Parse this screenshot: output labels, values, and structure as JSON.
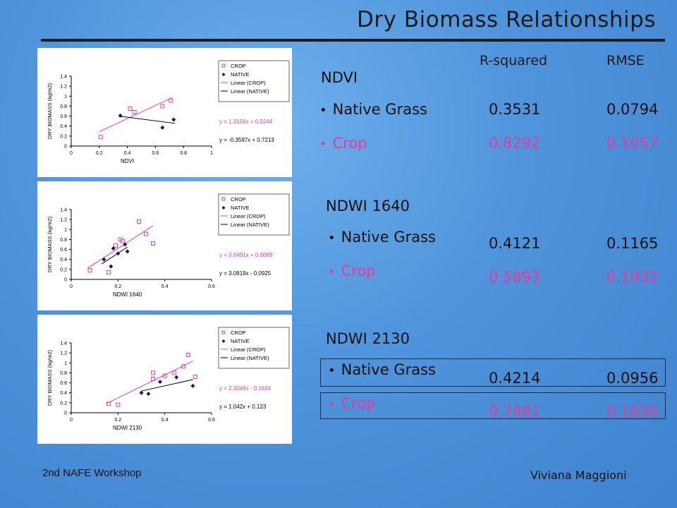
{
  "slide": {
    "title": "Dry Biomass Relationships",
    "footer_left": "2nd NAFE Workshop",
    "footer_right": "Viviana Maggioni"
  },
  "table": {
    "col_r2": "R-squared",
    "col_rmse": "RMSE",
    "native_label": "Native Grass",
    "crop_label": "Crop",
    "sections": [
      {
        "name": "NDVI",
        "native_r2": "0.3531",
        "native_rmse": "0.0794",
        "crop_r2": "0.8292",
        "crop_rmse": "0.1057"
      },
      {
        "name": "NDWI 1640",
        "native_r2": "0.4121",
        "native_rmse": "0.1165",
        "crop_r2": "0.5893",
        "crop_rmse": "0.1932"
      },
      {
        "name": "NDWI 2130",
        "native_r2": "0.4214",
        "native_rmse": "0.0956",
        "crop_r2": "0.7881",
        "crop_rmse": "0.1656"
      }
    ]
  },
  "colors": {
    "crop": "#e63c9c",
    "native": "#111111",
    "crop_marker": "#e83ca0",
    "native_marker": "#141470"
  },
  "chart_data": [
    {
      "type": "scatter",
      "xlabel": "NDVI",
      "ylabel": "DRY BIOMASS (kg/m2)",
      "xlim": [
        0,
        1
      ],
      "ylim": [
        0,
        1.4
      ],
      "xticks": [
        "0",
        "0.2",
        "0.4",
        "0.6",
        "0.8",
        "1"
      ],
      "yticks": [
        "0",
        "0.2",
        "0.4",
        "0.6",
        "0.8",
        "1",
        "1.2",
        "1.4"
      ],
      "legend": [
        "CROP",
        "NATIVE",
        "Linear (CROP)",
        "Linear (NATIVE)"
      ],
      "equations": [
        "y = 1.3156x + 0.0244",
        "y = -0.3597x + 0.7213"
      ],
      "series": [
        {
          "name": "CROP",
          "points": [
            [
              0.21,
              0.18
            ],
            [
              0.42,
              0.75
            ],
            [
              0.45,
              0.68
            ],
            [
              0.65,
              0.8
            ],
            [
              0.71,
              0.91
            ]
          ],
          "fit": [
            1.3156,
            0.0244
          ],
          "fit_range": [
            0.2,
            0.72
          ]
        },
        {
          "name": "NATIVE",
          "points": [
            [
              0.35,
              0.61
            ],
            [
              0.65,
              0.37
            ],
            [
              0.73,
              0.53
            ]
          ],
          "fit": [
            -0.3597,
            0.7213
          ],
          "fit_range": [
            0.34,
            0.74
          ]
        }
      ]
    },
    {
      "type": "scatter",
      "xlabel": "NDWI 1640",
      "ylabel": "DRY BIOMASS (kg/m2)",
      "xlim": [
        0,
        0.6
      ],
      "ylim": [
        0,
        1.4
      ],
      "xticks": [
        "0",
        "0.2",
        "0.4",
        "0.6"
      ],
      "yticks": [
        "0",
        "0.2",
        "0.4",
        "0.6",
        "0.8",
        "1",
        "1.2",
        "1.4"
      ],
      "legend": [
        "CROP",
        "NATIVE",
        "Linear (CROP)",
        "Linear (NATIVE)"
      ],
      "equations": [
        "y = 3.0491x + 0.0099",
        "y = 3.0819x - 0.0925"
      ],
      "series": [
        {
          "name": "CROP",
          "points": [
            [
              0.08,
              0.18
            ],
            [
              0.16,
              0.14
            ],
            [
              0.19,
              0.68
            ],
            [
              0.21,
              0.8
            ],
            [
              0.22,
              0.77
            ],
            [
              0.29,
              1.16
            ],
            [
              0.32,
              0.91
            ],
            [
              0.35,
              0.72
            ]
          ],
          "fit": [
            3.0491,
            0.0099
          ],
          "fit_range": [
            0.07,
            0.35
          ]
        },
        {
          "name": "NATIVE",
          "points": [
            [
              0.14,
              0.4
            ],
            [
              0.17,
              0.26
            ],
            [
              0.18,
              0.62
            ],
            [
              0.2,
              0.52
            ],
            [
              0.23,
              0.7
            ],
            [
              0.24,
              0.56
            ]
          ],
          "fit": [
            3.0819,
            -0.0925
          ],
          "fit_range": [
            0.13,
            0.24
          ]
        }
      ]
    },
    {
      "type": "scatter",
      "xlabel": "NDWI 2130",
      "ylabel": "DRY BIOMASS (kg/m2)",
      "xlim": [
        0,
        0.6
      ],
      "ylim": [
        0,
        1.4
      ],
      "xticks": [
        "0",
        "0.2",
        "0.4",
        "0.6"
      ],
      "yticks": [
        "0",
        "0.2",
        "0.4",
        "0.6",
        "0.8",
        "1",
        "1.2",
        "1.4"
      ],
      "legend": [
        "CROP",
        "NATIVE",
        "Linear (CROP)",
        "Linear (NATIVE)"
      ],
      "equations": [
        "y = 2.3046x - 0.1634",
        "y = 1.042x + 0.123"
      ],
      "series": [
        {
          "name": "CROP",
          "points": [
            [
              0.16,
              0.18
            ],
            [
              0.2,
              0.16
            ],
            [
              0.35,
              0.8
            ],
            [
              0.35,
              0.68
            ],
            [
              0.4,
              0.74
            ],
            [
              0.44,
              0.8
            ],
            [
              0.48,
              0.93
            ],
            [
              0.5,
              1.16
            ],
            [
              0.53,
              0.72
            ]
          ],
          "fit": [
            2.3046,
            -0.1634
          ],
          "fit_range": [
            0.15,
            0.52
          ]
        },
        {
          "name": "NATIVE",
          "points": [
            [
              0.3,
              0.4
            ],
            [
              0.33,
              0.38
            ],
            [
              0.38,
              0.62
            ],
            [
              0.45,
              0.71
            ],
            [
              0.52,
              0.54
            ]
          ],
          "fit": [
            1.042,
            0.123
          ],
          "fit_range": [
            0.3,
            0.52
          ]
        }
      ]
    }
  ]
}
